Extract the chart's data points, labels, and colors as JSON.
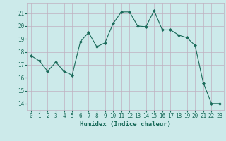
{
  "x": [
    0,
    1,
    2,
    3,
    4,
    5,
    6,
    7,
    8,
    9,
    10,
    11,
    12,
    13,
    14,
    15,
    16,
    17,
    18,
    19,
    20,
    21,
    22,
    23
  ],
  "y": [
    17.7,
    17.3,
    16.5,
    17.2,
    16.5,
    16.2,
    18.8,
    19.5,
    18.4,
    18.7,
    20.2,
    21.1,
    21.1,
    20.0,
    19.95,
    21.2,
    19.7,
    19.7,
    19.3,
    19.1,
    18.5,
    15.6,
    14.0,
    14.0
  ],
  "xlabel": "Humidex (Indice chaleur)",
  "ylim": [
    13.5,
    21.8
  ],
  "xlim": [
    -0.5,
    23.5
  ],
  "yticks": [
    14,
    15,
    16,
    17,
    18,
    19,
    20,
    21
  ],
  "line_color": "#1a6b5a",
  "marker": "D",
  "marker_size": 2.0,
  "bg_color": "#cceaea",
  "grid_color": "#c0b0c0",
  "label_color": "#1a6b5a",
  "tick_color": "#1a6b5a",
  "tick_fontsize": 5.5,
  "xlabel_fontsize": 6.5
}
